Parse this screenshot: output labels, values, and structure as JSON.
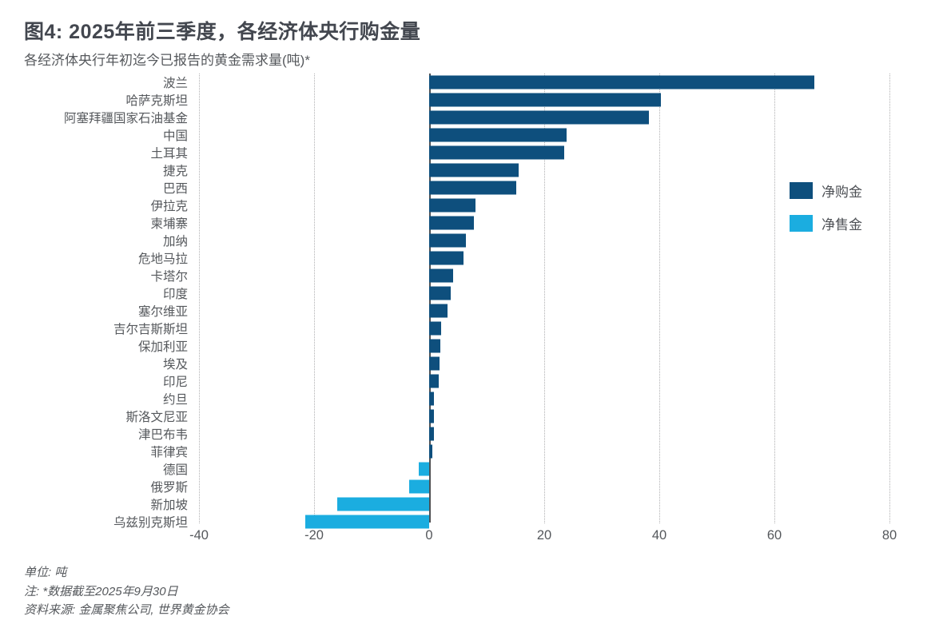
{
  "header": {
    "title": "图4: 2025年前三季度，各经济体央行购金量",
    "subtitle": "各经济体央行年初迄今已报告的黄金需求量(吨)*"
  },
  "legend": {
    "net_purchases": "净购金",
    "net_sales": "净售金"
  },
  "colors": {
    "net_purchases": "#0E4F7D",
    "net_sales": "#1BADE0",
    "title": "#43474F",
    "text": "#55585C",
    "gridline": "#B0B0B2",
    "zero_line": "#4F5154"
  },
  "chart_data": {
    "type": "bar",
    "orientation": "horizontal",
    "title": "图4: 2025年前三季度，各经济体央行购金量",
    "subtitle": "各经济体央行年初迄今已报告的黄金需求量(吨)*",
    "unit": "吨",
    "categories": [
      "波兰",
      "哈萨克斯坦",
      "阿塞拜疆国家石油基金",
      "中国",
      "土耳其",
      "捷克",
      "巴西",
      "伊拉克",
      "柬埔寨",
      "加纳",
      "危地马拉",
      "卡塔尔",
      "印度",
      "塞尔维亚",
      "吉尔吉斯斯坦",
      "保加利亚",
      "埃及",
      "印尼",
      "约旦",
      "斯洛文尼亚",
      "津巴布韦",
      "菲律宾",
      "德国",
      "俄罗斯",
      "新加坡",
      "乌兹别克斯坦"
    ],
    "values": [
      67,
      40.3,
      38.2,
      23.9,
      23.5,
      15.5,
      15.2,
      8.1,
      7.8,
      6.4,
      6.0,
      4.2,
      3.8,
      3.2,
      2.1,
      1.9,
      1.8,
      1.6,
      0.8,
      0.8,
      0.8,
      0.6,
      -1.8,
      -3.5,
      -16.0,
      -21.5
    ],
    "series_rule": "positive = 净购金 (dark blue), negative = 净售金 (light blue)",
    "xlim": [
      -40,
      80
    ],
    "x_ticks": [
      -40,
      -20,
      0,
      20,
      40,
      60,
      80
    ],
    "legend": [
      "净购金",
      "净售金"
    ],
    "legend_position": "right",
    "grid": "vertical dotted at ticks, solid line at 0"
  },
  "footer": {
    "unit_line": "单位: 吨",
    "note_line": "注: *数据截至2025年9月30日",
    "source_line": "资料来源: 金属聚焦公司, 世界黄金协会"
  }
}
